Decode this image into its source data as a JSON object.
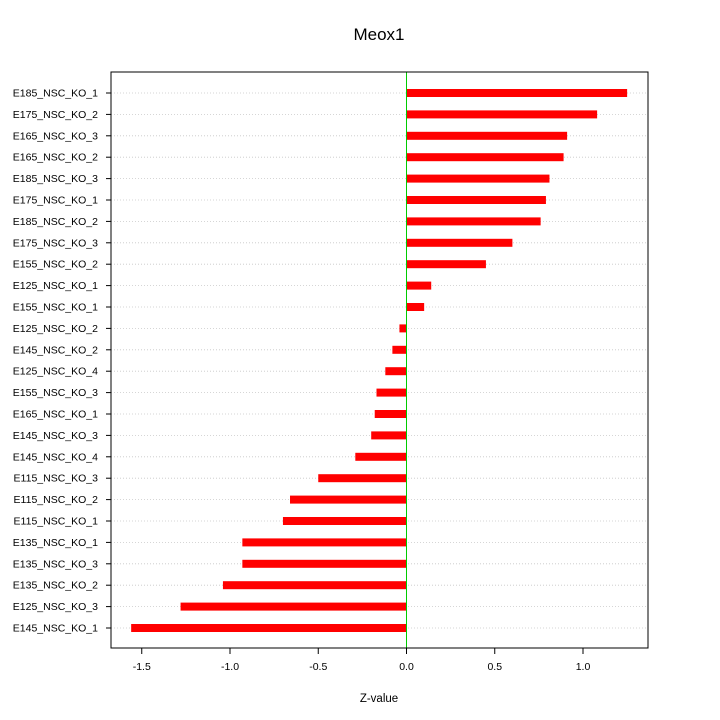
{
  "chart_data": {
    "type": "bar",
    "orientation": "horizontal",
    "title": "Meox1",
    "xlabel": "Z-value",
    "ylabel": "",
    "xlim": [
      -1.65,
      1.35
    ],
    "xticks": [
      -1.5,
      -1.0,
      -0.5,
      0.0,
      0.5,
      1.0
    ],
    "xtick_labels": [
      "-1.5",
      "-1.0",
      "-0.5",
      "0.0",
      "0.5",
      "1.0"
    ],
    "grid": "horizontal dotted",
    "bar_color": "#ff0000",
    "zero_line_color": "#00cc00",
    "categories": [
      "E185_NSC_KO_1",
      "E175_NSC_KO_2",
      "E165_NSC_KO_3",
      "E165_NSC_KO_2",
      "E185_NSC_KO_3",
      "E175_NSC_KO_1",
      "E185_NSC_KO_2",
      "E175_NSC_KO_3",
      "E155_NSC_KO_2",
      "E125_NSC_KO_1",
      "E155_NSC_KO_1",
      "E125_NSC_KO_2",
      "E145_NSC_KO_2",
      "E125_NSC_KO_4",
      "E155_NSC_KO_3",
      "E165_NSC_KO_1",
      "E145_NSC_KO_3",
      "E145_NSC_KO_4",
      "E115_NSC_KO_3",
      "E115_NSC_KO_2",
      "E115_NSC_KO_1",
      "E135_NSC_KO_1",
      "E135_NSC_KO_3",
      "E135_NSC_KO_2",
      "E125_NSC_KO_3",
      "E145_NSC_KO_1"
    ],
    "values": [
      1.25,
      1.08,
      0.91,
      0.89,
      0.81,
      0.79,
      0.76,
      0.6,
      0.45,
      0.14,
      0.1,
      -0.04,
      -0.08,
      -0.12,
      -0.17,
      -0.18,
      -0.2,
      -0.29,
      -0.5,
      -0.66,
      -0.7,
      -0.93,
      -0.93,
      -1.04,
      -1.28,
      -1.56
    ]
  }
}
